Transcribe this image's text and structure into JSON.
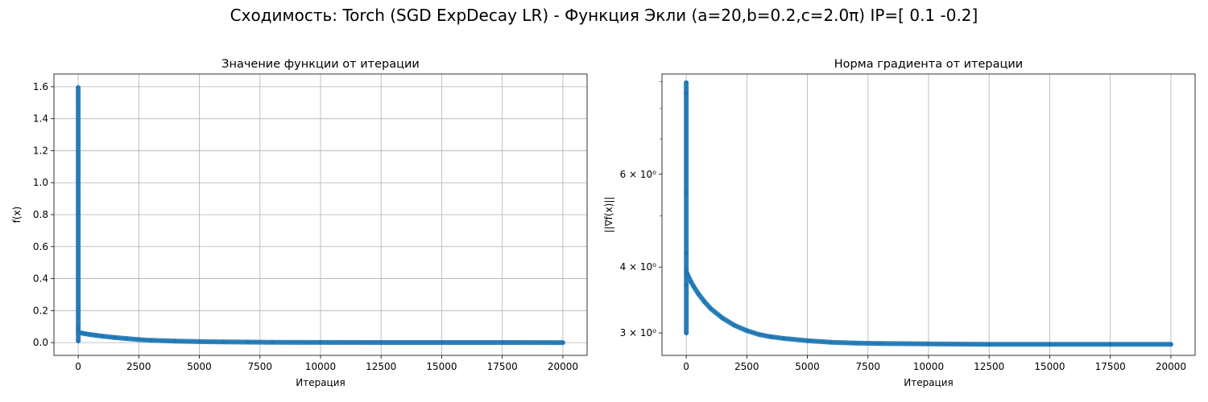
{
  "figure": {
    "suptitle": "Сходимость: Torch (SGD ExpDecay LR) - Функция Экли (a=20,b=0.2,c=2.0π) IP=[ 0.1 -0.2]"
  },
  "colors": {
    "series": "#1f77b4",
    "grid": "#b0b0b0",
    "axes": "#000000"
  },
  "chart_data": [
    {
      "type": "line",
      "title": "Значение функции от итерации",
      "xlabel": "Итерация",
      "ylabel": "f(x)",
      "xlim": [
        -1000,
        21000
      ],
      "ylim": [
        -0.08,
        1.68
      ],
      "yscale": "linear",
      "grid": "both",
      "xticks": [
        0,
        2500,
        5000,
        7500,
        10000,
        12500,
        15000,
        17500,
        20000
      ],
      "xtick_labels": [
        "0",
        "2500",
        "5000",
        "7500",
        "10000",
        "12500",
        "15000",
        "17500",
        "20000"
      ],
      "yticks": [
        0.0,
        0.2,
        0.4,
        0.6,
        0.8,
        1.0,
        1.2,
        1.4,
        1.6
      ],
      "ytick_labels": [
        "0.0",
        "0.2",
        "0.4",
        "0.6",
        "0.8",
        "1.0",
        "1.2",
        "1.4",
        "1.6"
      ],
      "marker": "dot",
      "series": [
        {
          "x": [
            0,
            1,
            2,
            3,
            4,
            5,
            6,
            8,
            10,
            20,
            50,
            100,
            200,
            300,
            500,
            750,
            1000,
            1500,
            2000,
            2500,
            3000,
            4000,
            5000,
            6000,
            7000,
            8000,
            10000,
            12500,
            15000,
            17500,
            20000
          ],
          "y": [
            1.595,
            0.81,
            0.215,
            0.01,
            0.09,
            0.07,
            0.065,
            0.064,
            0.063,
            0.062,
            0.061,
            0.06,
            0.058,
            0.055,
            0.05,
            0.045,
            0.04,
            0.032,
            0.025,
            0.019,
            0.014,
            0.009,
            0.006,
            0.004,
            0.003,
            0.002,
            0.001,
            0.0005,
            0.0003,
            0.0002,
            0.0001
          ]
        }
      ]
    },
    {
      "type": "line",
      "title": "Норма градиента от итерации",
      "xlabel": "Итерация",
      "ylabel": "||∇f(x)||",
      "xlim": [
        -1000,
        21000
      ],
      "ylim": [
        2.72,
        9.3
      ],
      "yscale": "log",
      "grid": "x",
      "xticks": [
        0,
        2500,
        5000,
        7500,
        10000,
        12500,
        15000,
        17500,
        20000
      ],
      "xtick_labels": [
        "0",
        "2500",
        "5000",
        "7500",
        "10000",
        "12500",
        "15000",
        "17500",
        "20000"
      ],
      "yticks": [
        3,
        4,
        6
      ],
      "ytick_labels": [
        "3 × 10⁰",
        "4 × 10⁰",
        "6 × 10⁰"
      ],
      "yminor_ticks": [
        5,
        7,
        8,
        9
      ],
      "marker": "dot",
      "series": [
        {
          "x": [
            0,
            1,
            2,
            3,
            4,
            5,
            6,
            7,
            10,
            50,
            100,
            200,
            300,
            500,
            750,
            1000,
            1500,
            2000,
            2500,
            3000,
            3500,
            4000,
            5000,
            6000,
            7000,
            8000,
            10000,
            12500,
            15000,
            17500,
            20000
          ],
          "y": [
            8.95,
            8.55,
            5.55,
            4.25,
            3.0,
            3.7,
            3.95,
            3.88,
            3.9,
            3.88,
            3.83,
            3.75,
            3.68,
            3.56,
            3.44,
            3.34,
            3.2,
            3.1,
            3.03,
            2.98,
            2.95,
            2.93,
            2.9,
            2.88,
            2.87,
            2.865,
            2.86,
            2.855,
            2.855,
            2.855,
            2.855
          ]
        }
      ]
    }
  ]
}
